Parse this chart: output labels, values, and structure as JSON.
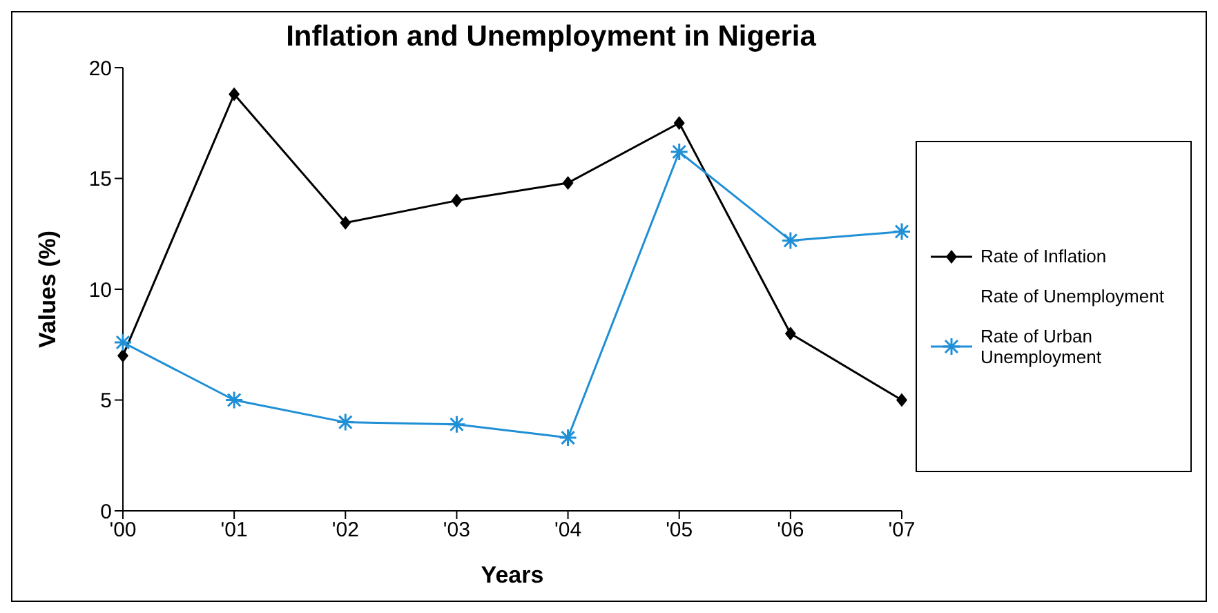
{
  "chart_data": {
    "type": "line",
    "title": "Inflation and Unemployment in Nigeria",
    "xlabel": "Years",
    "ylabel": "Values (%)",
    "categories": [
      "'00",
      "'01",
      "'02",
      "'03",
      "'04",
      "'05",
      "'06",
      "'07"
    ],
    "series": [
      {
        "name": "Rate of Inflation",
        "color": "#000000",
        "marker": "diamond",
        "values": [
          7,
          18.8,
          13,
          14,
          14.8,
          17.5,
          8,
          5
        ]
      },
      {
        "name": "Rate of Unemployment",
        "values": [
          null,
          null,
          null,
          null,
          null,
          null,
          null,
          null
        ]
      },
      {
        "name": "Rate of Urban Unemployment",
        "color": "#1f8fd6",
        "marker": "cross",
        "values": [
          7.6,
          5,
          4,
          3.9,
          3.3,
          16.2,
          12.2,
          12.6
        ]
      }
    ],
    "ylim": [
      0,
      20
    ],
    "yticks": [
      0,
      5,
      10,
      15,
      20
    ],
    "grid": false,
    "legend": "right",
    "line_style": "solid"
  }
}
